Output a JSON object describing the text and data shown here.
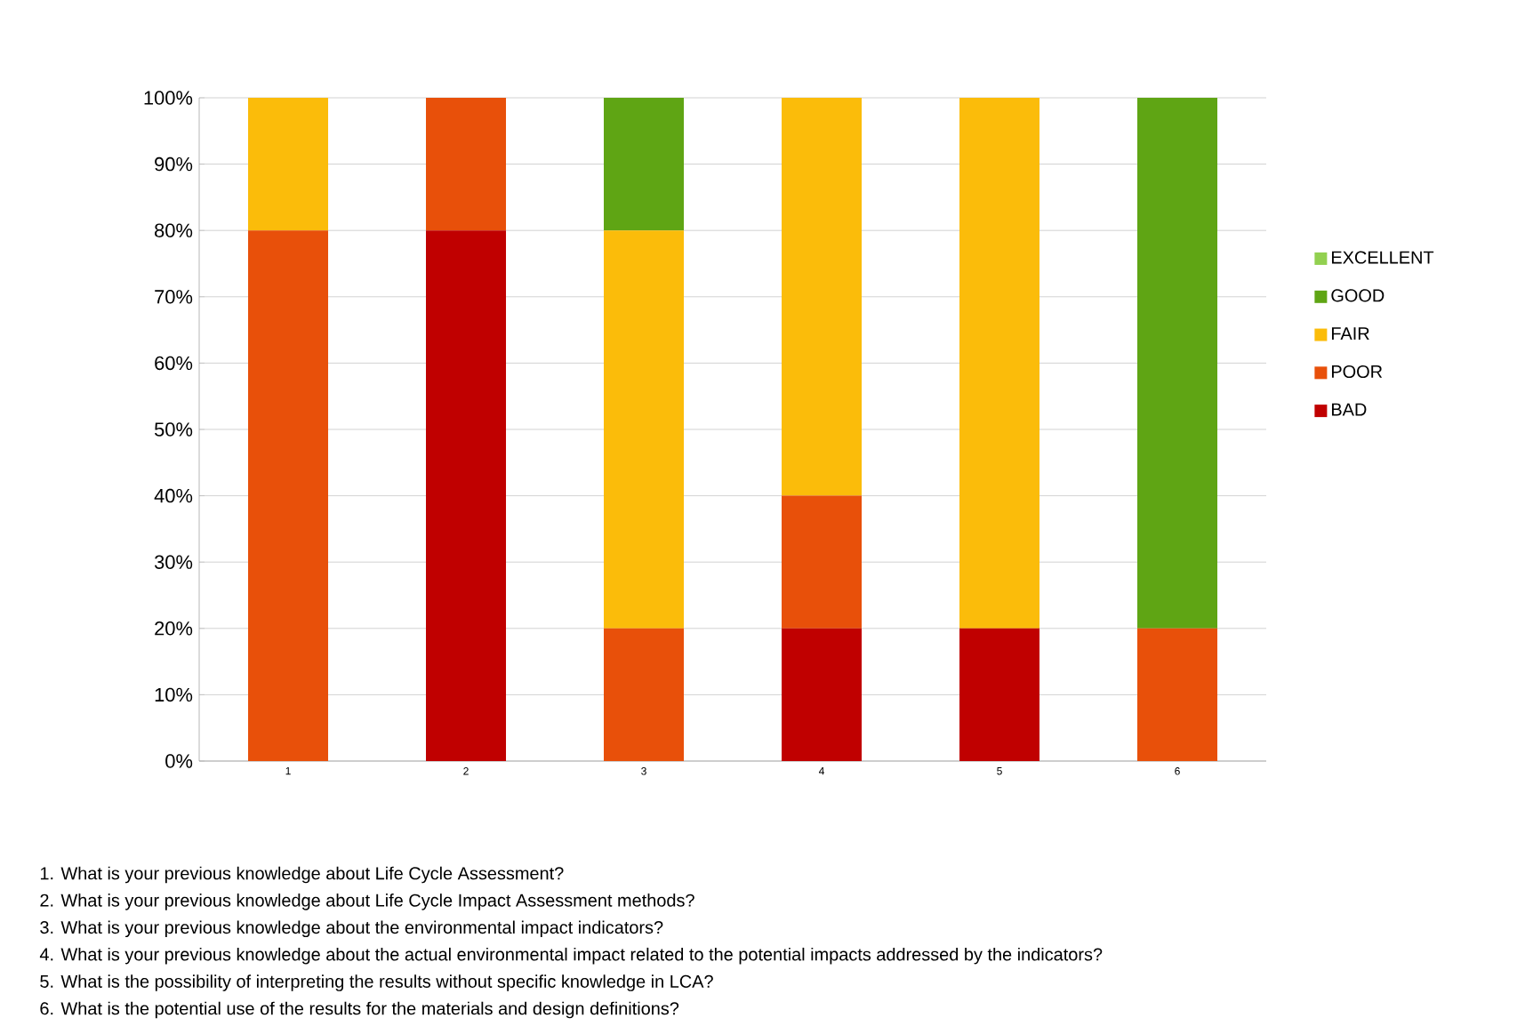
{
  "chart_data": {
    "type": "bar",
    "stacked": true,
    "categories": [
      "1",
      "2",
      "3",
      "4",
      "5",
      "6"
    ],
    "series": [
      {
        "name": "BAD",
        "color": "#c00000",
        "values": [
          0,
          80,
          0,
          20,
          20,
          0
        ]
      },
      {
        "name": "POOR",
        "color": "#e8500a",
        "values": [
          80,
          20,
          20,
          20,
          0,
          20
        ]
      },
      {
        "name": "FAIR",
        "color": "#fbbc0a",
        "values": [
          20,
          0,
          60,
          60,
          80,
          0
        ]
      },
      {
        "name": "GOOD",
        "color": "#5fa514",
        "values": [
          0,
          0,
          20,
          0,
          0,
          80
        ]
      },
      {
        "name": "EXCELLENT",
        "color": "#92d050",
        "values": [
          0,
          0,
          0,
          0,
          0,
          0
        ]
      }
    ],
    "ylim": [
      0,
      100
    ],
    "yticks": [
      {
        "value": 0,
        "label": "0%"
      },
      {
        "value": 10,
        "label": "10%"
      },
      {
        "value": 20,
        "label": "20%"
      },
      {
        "value": 30,
        "label": "30%"
      },
      {
        "value": 40,
        "label": "40%"
      },
      {
        "value": 50,
        "label": "50%"
      },
      {
        "value": 60,
        "label": "60%"
      },
      {
        "value": 70,
        "label": "70%"
      },
      {
        "value": 80,
        "label": "80%"
      },
      {
        "value": 90,
        "label": "90%"
      },
      {
        "value": 100,
        "label": "100%"
      }
    ],
    "grid": "y",
    "legend": "right",
    "annotations": [
      "1. What is your previous knowledge about Life Cycle Assessment?",
      "2. What is your previous knowledge about Life Cycle Impact Assessment methods?",
      "3. What is your previous knowledge about the environmental impact indicators?",
      "4. What is your previous knowledge about the actual environmental impact related to the potential impacts addressed by the indicators?",
      "5. What is the possibility of interpreting the results without specific knowledge in LCA?",
      "6. What is the potential use of the results for the materials and design definitions?"
    ]
  }
}
